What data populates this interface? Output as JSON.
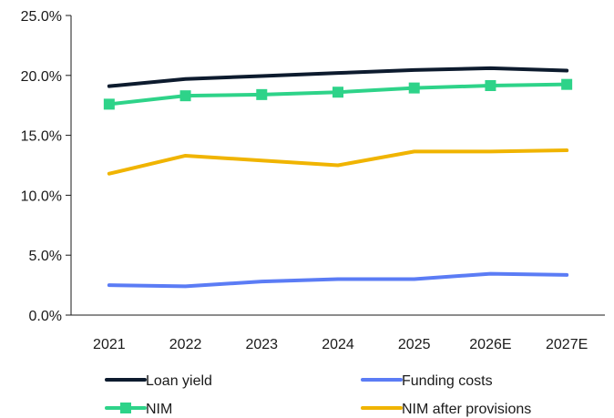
{
  "chart_data": {
    "type": "line",
    "categories": [
      "2021",
      "2022",
      "2023",
      "2024",
      "2025",
      "2026E",
      "2027E"
    ],
    "ylim": [
      0,
      25
    ],
    "yticks": [
      0,
      5,
      10,
      15,
      20,
      25
    ],
    "ytick_labels": [
      "0.0%",
      "5.0%",
      "10.0%",
      "15.0%",
      "20.0%",
      "25.0%"
    ],
    "grid": false,
    "legend_position": "bottom",
    "series": [
      {
        "name": "Loan yield",
        "color": "#0d1b2e",
        "marker": "none",
        "values": [
          19.1,
          19.7,
          19.95,
          20.2,
          20.45,
          20.6,
          20.4
        ]
      },
      {
        "name": "Funding costs",
        "color": "#5b7cf5",
        "marker": "none",
        "values": [
          2.5,
          2.4,
          2.8,
          3.0,
          3.0,
          3.45,
          3.35
        ]
      },
      {
        "name": "NIM",
        "color": "#2ed389",
        "marker": "square",
        "values": [
          17.6,
          18.3,
          18.4,
          18.6,
          18.95,
          19.15,
          19.25
        ]
      },
      {
        "name": "NIM after provisions",
        "color": "#f0b400",
        "marker": "none",
        "values": [
          11.8,
          13.3,
          12.9,
          12.5,
          13.65,
          13.65,
          13.75
        ]
      }
    ]
  }
}
